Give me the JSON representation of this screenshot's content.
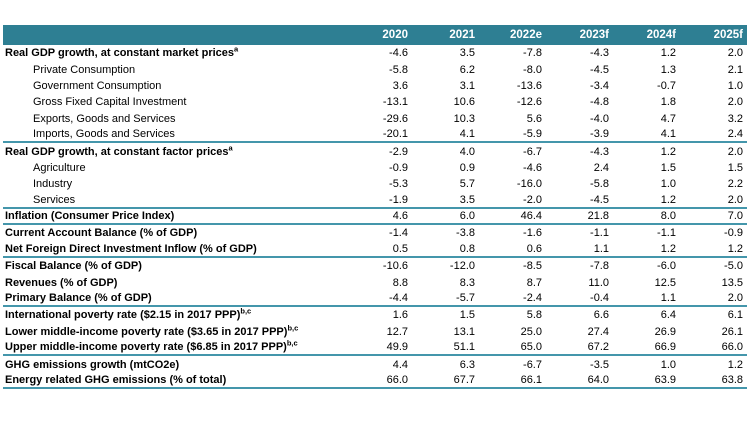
{
  "colors": {
    "header_bg": "#2e7f93",
    "divider_line": "#4496ab",
    "header_text": "#ffffff",
    "body_text": "#000000"
  },
  "table": {
    "columns": [
      "2020",
      "2021",
      "2022e",
      "2023f",
      "2024f",
      "2025f"
    ],
    "rows": [
      {
        "label": "Real GDP growth, at constant market prices",
        "sup": "a",
        "values": [
          "-4.6",
          "3.5",
          "-7.8",
          "-4.3",
          "1.2",
          "2.0"
        ]
      },
      {
        "label": "Private Consumption",
        "values": [
          "-5.8",
          "6.2",
          "-8.0",
          "-4.5",
          "1.3",
          "2.1"
        ]
      },
      {
        "label": "Government Consumption",
        "values": [
          "3.6",
          "3.1",
          "-13.6",
          "-3.4",
          "-0.7",
          "1.0"
        ]
      },
      {
        "label": "Gross Fixed Capital Investment",
        "values": [
          "-13.1",
          "10.6",
          "-12.6",
          "-4.8",
          "1.8",
          "2.0"
        ]
      },
      {
        "label": "Exports, Goods and Services",
        "values": [
          "-29.6",
          "10.3",
          "5.6",
          "-4.0",
          "4.7",
          "3.2"
        ]
      },
      {
        "label": "Imports, Goods and Services",
        "values": [
          "-20.1",
          "4.1",
          "-5.9",
          "-3.9",
          "4.1",
          "2.4"
        ]
      },
      {
        "label": "Real GDP growth, at constant factor prices",
        "sup": "a",
        "values": [
          "-2.9",
          "4.0",
          "-6.7",
          "-4.3",
          "1.2",
          "2.0"
        ]
      },
      {
        "label": "Agriculture",
        "values": [
          "-0.9",
          "0.9",
          "-4.6",
          "2.4",
          "1.5",
          "1.5"
        ]
      },
      {
        "label": "Industry",
        "values": [
          "-5.3",
          "5.7",
          "-16.0",
          "-5.8",
          "1.0",
          "2.2"
        ]
      },
      {
        "label": "Services",
        "values": [
          "-1.9",
          "3.5",
          "-2.0",
          "-4.5",
          "1.2",
          "2.0"
        ]
      },
      {
        "label": "Inflation (Consumer Price Index)",
        "values": [
          "4.6",
          "6.0",
          "46.4",
          "21.8",
          "8.0",
          "7.0"
        ]
      },
      {
        "label": "Current Account Balance (% of GDP)",
        "values": [
          "-1.4",
          "-3.8",
          "-1.6",
          "-1.1",
          "-1.1",
          "-0.9"
        ]
      },
      {
        "label": "Net Foreign Direct Investment Inflow (% of GDP)",
        "values": [
          "0.5",
          "0.8",
          "0.6",
          "1.1",
          "1.2",
          "1.2"
        ]
      },
      {
        "label": "Fiscal Balance (% of GDP)",
        "values": [
          "-10.6",
          "-12.0",
          "-8.5",
          "-7.8",
          "-6.0",
          "-5.0"
        ]
      },
      {
        "label": "Revenues (% of GDP)",
        "values": [
          "8.8",
          "8.3",
          "8.7",
          "11.0",
          "12.5",
          "13.5"
        ]
      },
      {
        "label": "Primary Balance (% of GDP)",
        "values": [
          "-4.4",
          "-5.7",
          "-2.4",
          "-0.4",
          "1.1",
          "2.0"
        ]
      },
      {
        "label": "International poverty rate ($2.15 in 2017 PPP)",
        "sup": "b,c",
        "values": [
          "1.6",
          "1.5",
          "5.8",
          "6.6",
          "6.4",
          "6.1"
        ]
      },
      {
        "label": "Lower middle-income poverty rate ($3.65 in 2017 PPP)",
        "sup": "b,c",
        "values": [
          "12.7",
          "13.1",
          "25.0",
          "27.4",
          "26.9",
          "26.1"
        ]
      },
      {
        "label": "Upper middle-income poverty rate ($6.85 in 2017 PPP)",
        "sup": "b,c",
        "values": [
          "49.9",
          "51.1",
          "65.0",
          "67.2",
          "66.9",
          "66.0"
        ]
      },
      {
        "label": "GHG emissions growth (mtCO2e)",
        "values": [
          "4.4",
          "6.3",
          "-6.7",
          "-3.5",
          "1.0",
          "1.2"
        ]
      },
      {
        "label": "Energy related GHG emissions (% of total)",
        "values": [
          "66.0",
          "67.7",
          "66.1",
          "64.0",
          "63.9",
          "63.8"
        ]
      }
    ]
  }
}
